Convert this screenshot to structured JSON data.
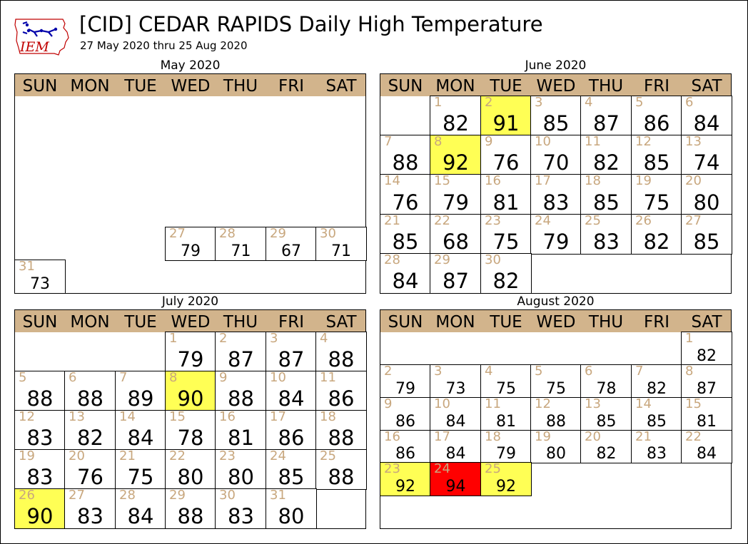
{
  "header": {
    "title": "[CID] CEDAR RAPIDS Daily High Temperature",
    "subtitle": "27 May 2020 thru 25 Aug 2020",
    "logo_text": "IEM"
  },
  "colors": {
    "header_bg": "#d2b48c",
    "day_number": "#c8a77e",
    "highlight_hot": "#ffff55",
    "highlight_max": "#ff0000"
  },
  "weekdays": [
    "SUN",
    "MON",
    "TUE",
    "WED",
    "THU",
    "FRI",
    "SAT"
  ],
  "chart_data": {
    "type": "table",
    "months": [
      {
        "name": "May 2020",
        "first_weekday": 5,
        "days": [
          {
            "day": 27,
            "high": 79
          },
          {
            "day": 28,
            "high": 71
          },
          {
            "day": 29,
            "high": 67
          },
          {
            "day": 30,
            "high": 71
          },
          {
            "day": 31,
            "high": 73
          }
        ]
      },
      {
        "name": "June 2020",
        "first_weekday": 1,
        "days": [
          {
            "day": 1,
            "high": 82
          },
          {
            "day": 2,
            "high": 91,
            "highlight": "hot"
          },
          {
            "day": 3,
            "high": 85
          },
          {
            "day": 4,
            "high": 87
          },
          {
            "day": 5,
            "high": 86
          },
          {
            "day": 6,
            "high": 84
          },
          {
            "day": 7,
            "high": 88
          },
          {
            "day": 8,
            "high": 92,
            "highlight": "hot"
          },
          {
            "day": 9,
            "high": 76
          },
          {
            "day": 10,
            "high": 70
          },
          {
            "day": 11,
            "high": 82
          },
          {
            "day": 12,
            "high": 85
          },
          {
            "day": 13,
            "high": 74
          },
          {
            "day": 14,
            "high": 76
          },
          {
            "day": 15,
            "high": 79
          },
          {
            "day": 16,
            "high": 81
          },
          {
            "day": 17,
            "high": 83
          },
          {
            "day": 18,
            "high": 85
          },
          {
            "day": 19,
            "high": 75
          },
          {
            "day": 20,
            "high": 80
          },
          {
            "day": 21,
            "high": 85
          },
          {
            "day": 22,
            "high": 68
          },
          {
            "day": 23,
            "high": 75
          },
          {
            "day": 24,
            "high": 79
          },
          {
            "day": 25,
            "high": 83
          },
          {
            "day": 26,
            "high": 82
          },
          {
            "day": 27,
            "high": 85
          },
          {
            "day": 28,
            "high": 84
          },
          {
            "day": 29,
            "high": 87
          },
          {
            "day": 30,
            "high": 82
          }
        ]
      },
      {
        "name": "July 2020",
        "first_weekday": 3,
        "days": [
          {
            "day": 1,
            "high": 79
          },
          {
            "day": 2,
            "high": 87
          },
          {
            "day": 3,
            "high": 87
          },
          {
            "day": 4,
            "high": 88
          },
          {
            "day": 5,
            "high": 88
          },
          {
            "day": 6,
            "high": 88
          },
          {
            "day": 7,
            "high": 89
          },
          {
            "day": 8,
            "high": 90,
            "highlight": "hot"
          },
          {
            "day": 9,
            "high": 88
          },
          {
            "day": 10,
            "high": 84
          },
          {
            "day": 11,
            "high": 86
          },
          {
            "day": 12,
            "high": 83
          },
          {
            "day": 13,
            "high": 82
          },
          {
            "day": 14,
            "high": 84
          },
          {
            "day": 15,
            "high": 78
          },
          {
            "day": 16,
            "high": 81
          },
          {
            "day": 17,
            "high": 86
          },
          {
            "day": 18,
            "high": 88
          },
          {
            "day": 19,
            "high": 83
          },
          {
            "day": 20,
            "high": 76
          },
          {
            "day": 21,
            "high": 75
          },
          {
            "day": 22,
            "high": 80
          },
          {
            "day": 23,
            "high": 80
          },
          {
            "day": 24,
            "high": 85
          },
          {
            "day": 25,
            "high": 88
          },
          {
            "day": 26,
            "high": 90,
            "highlight": "hot"
          },
          {
            "day": 27,
            "high": 83
          },
          {
            "day": 28,
            "high": 84
          },
          {
            "day": 29,
            "high": 88
          },
          {
            "day": 30,
            "high": 83
          },
          {
            "day": 31,
            "high": 80
          }
        ]
      },
      {
        "name": "August 2020",
        "first_weekday": 6,
        "days": [
          {
            "day": 1,
            "high": 82
          },
          {
            "day": 2,
            "high": 79
          },
          {
            "day": 3,
            "high": 73
          },
          {
            "day": 4,
            "high": 75
          },
          {
            "day": 5,
            "high": 75
          },
          {
            "day": 6,
            "high": 78
          },
          {
            "day": 7,
            "high": 82
          },
          {
            "day": 8,
            "high": 87
          },
          {
            "day": 9,
            "high": 86
          },
          {
            "day": 10,
            "high": 84
          },
          {
            "day": 11,
            "high": 81
          },
          {
            "day": 12,
            "high": 88
          },
          {
            "day": 13,
            "high": 85
          },
          {
            "day": 14,
            "high": 85
          },
          {
            "day": 15,
            "high": 81
          },
          {
            "day": 16,
            "high": 86
          },
          {
            "day": 17,
            "high": 84
          },
          {
            "day": 18,
            "high": 79
          },
          {
            "day": 19,
            "high": 80
          },
          {
            "day": 20,
            "high": 82
          },
          {
            "day": 21,
            "high": 83
          },
          {
            "day": 22,
            "high": 84
          },
          {
            "day": 23,
            "high": 92,
            "highlight": "hot"
          },
          {
            "day": 24,
            "high": 94,
            "highlight": "max"
          },
          {
            "day": 25,
            "high": 92,
            "highlight": "hot"
          }
        ]
      }
    ]
  }
}
